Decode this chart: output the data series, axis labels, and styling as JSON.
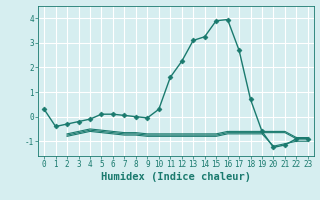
{
  "xlabel": "Humidex (Indice chaleur)",
  "ylabel": "",
  "background_color": "#d6eef0",
  "grid_color": "#ffffff",
  "line_color": "#1a7a6e",
  "xlim": [
    -0.5,
    23.5
  ],
  "ylim": [
    -1.6,
    4.5
  ],
  "yticks": [
    -1,
    0,
    1,
    2,
    3,
    4
  ],
  "xticks": [
    0,
    1,
    2,
    3,
    4,
    5,
    6,
    7,
    8,
    9,
    10,
    11,
    12,
    13,
    14,
    15,
    16,
    17,
    18,
    19,
    20,
    21,
    22,
    23
  ],
  "series": [
    {
      "x": [
        0,
        1,
        2,
        3,
        4,
        5,
        6,
        7,
        8,
        9,
        10,
        11,
        12,
        13,
        14,
        15,
        16,
        17,
        18,
        19,
        20,
        21,
        22,
        23
      ],
      "y": [
        0.3,
        -0.4,
        -0.3,
        -0.2,
        -0.1,
        0.1,
        0.1,
        0.05,
        0.0,
        -0.05,
        0.3,
        1.6,
        2.25,
        3.1,
        3.25,
        3.9,
        3.95,
        2.7,
        0.7,
        -0.6,
        -1.25,
        -1.15,
        -0.9,
        -0.9
      ],
      "marker": "D",
      "markersize": 2.5,
      "linewidth": 1.0
    },
    {
      "x": [
        2,
        3,
        4,
        5,
        6,
        7,
        8,
        9,
        10,
        11,
        12,
        13,
        14,
        15,
        16,
        17,
        18,
        19,
        20,
        21,
        22,
        23
      ],
      "y": [
        -0.7,
        -0.6,
        -0.5,
        -0.55,
        -0.6,
        -0.65,
        -0.65,
        -0.7,
        -0.7,
        -0.7,
        -0.7,
        -0.7,
        -0.7,
        -0.7,
        -0.6,
        -0.6,
        -0.6,
        -0.6,
        -0.6,
        -0.6,
        -0.85,
        -0.85
      ],
      "marker": null,
      "markersize": 0,
      "linewidth": 0.8
    },
    {
      "x": [
        2,
        3,
        4,
        5,
        6,
        7,
        8,
        9,
        10,
        11,
        12,
        13,
        14,
        15,
        16,
        17,
        18,
        19,
        20,
        21,
        22,
        23
      ],
      "y": [
        -0.75,
        -0.65,
        -0.55,
        -0.6,
        -0.65,
        -0.7,
        -0.7,
        -0.75,
        -0.75,
        -0.75,
        -0.75,
        -0.75,
        -0.75,
        -0.75,
        -0.65,
        -0.65,
        -0.65,
        -0.65,
        -0.65,
        -0.65,
        -0.9,
        -0.9
      ],
      "marker": null,
      "markersize": 0,
      "linewidth": 0.8
    },
    {
      "x": [
        2,
        3,
        4,
        5,
        6,
        7,
        8,
        9,
        10,
        11,
        12,
        13,
        14,
        15,
        16,
        17,
        18,
        19,
        20,
        21,
        22,
        23
      ],
      "y": [
        -0.8,
        -0.7,
        -0.6,
        -0.65,
        -0.7,
        -0.75,
        -0.75,
        -0.8,
        -0.8,
        -0.8,
        -0.8,
        -0.8,
        -0.8,
        -0.8,
        -0.7,
        -0.7,
        -0.7,
        -0.7,
        -1.2,
        -1.1,
        -1.0,
        -1.0
      ],
      "marker": null,
      "markersize": 0,
      "linewidth": 0.8
    }
  ],
  "font_color": "#1a7a6e",
  "tick_fontsize": 5.5,
  "label_fontsize": 7.5
}
